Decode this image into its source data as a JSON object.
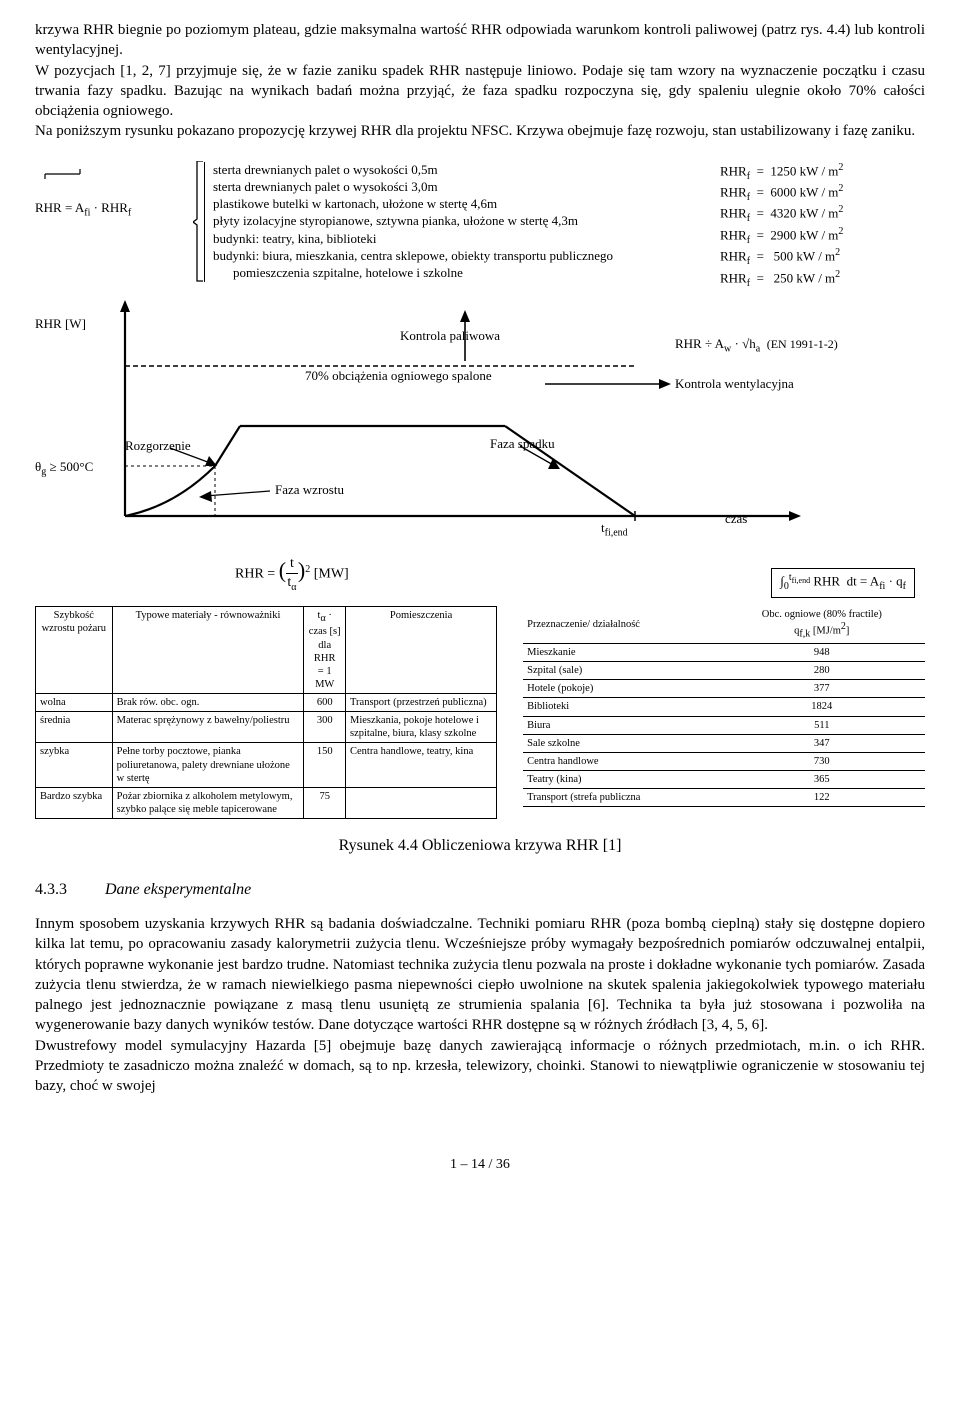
{
  "paragraphs": {
    "p1": "krzywa RHR biegnie po poziomym plateau, gdzie maksymalna wartość RHR odpowiada warunkom kontroli paliwowej (patrz rys. 4.4) lub kontroli wentylacyjnej.",
    "p2": "W pozycjach [1, 2, 7] przyjmuje się, że w fazie zaniku spadek RHR następuje liniowo. Podaje się tam wzory na wyznaczenie początku i czasu trwania fazy spadku. Bazując na wynikach badań można przyjąć, że faza spadku rozpoczyna się, gdy spaleniu ulegnie około 70% całości obciążenia ogniowego.",
    "p3": "Na poniższym rysunku pokazano propozycję krzywej RHR dla projektu NFSC. Krzywa obejmuje fazę rozwoju, stan ustabilizowany i fazę zaniku.",
    "p4": "Innym sposobem uzyskania krzywych RHR są badania doświadczalne. Techniki pomiaru RHR (poza bombą cieplną) stały się dostępne dopiero kilka lat temu, po opracowaniu zasady kalorymetrii zużycia tlenu. Wcześniejsze próby wymagały bezpośrednich pomiarów odczuwalnej entalpii, których poprawne wykonanie jest bardzo trudne. Natomiast technika zużycia tlenu pozwala na proste i dokładne wykonanie tych pomiarów. Zasada zużycia tlenu stwierdza, że w ramach niewielkiego pasma niepewności ciepło uwolnione na skutek spalenia jakiegokolwiek typowego materiału palnego jest jednoznacznie powiązane z masą tlenu usuniętą ze strumienia spalania [6]. Technika ta była już stosowana i pozwoliła na wygenerowanie bazy danych wyników testów. Dane dotyczące wartości RHR dostępne są w różnych źródłach [3, 4, 5, 6].",
    "p5": "Dwustrefowy model symulacyjny Hazarda [5] obejmuje bazę danych zawierającą informacje o różnych przedmiotach, m.in. o ich RHR. Przedmioty te zasadniczo można znaleźć w domach, są to np. krzesła, telewizory, choinki. Stanowi to niewątpliwie ograniczenie w stosowaniu tej bazy, choć w swojej"
  },
  "figure": {
    "formula_left": "RHR = A_fi · RHR_f",
    "y_axis_label": "RHR [W]",
    "theta_label": "θ_g ≥ 500°C",
    "materials": [
      "sterta drewnianych palet o wysokości 0,5m",
      "sterta drewnianych palet o wysokości 3,0m",
      "plastikowe butelki w kartonach, ułożone w stertę 4,6m",
      "płyty izolacyjne styropianowe, sztywna pianka, ułożone w stertę 4,3m",
      "budynki: teatry, kina, biblioteki",
      "budynki: biura, mieszkania, centra sklepowe, obiekty transportu publicznego",
      "    pomieszczenia szpitalne, hotelowe i szkolne"
    ],
    "rhr_values": [
      "RHR_f  =  1250 kW / m²",
      "RHR_f  =  6000 kW / m²",
      "RHR_f  =  4320 kW / m²",
      "RHR_f  =  2900 kW / m²",
      "RHR_f  =   500 kW / m²",
      "RHR_f  =   250 kW / m²"
    ],
    "vent_formula": "RHR · A_w · √h_a",
    "en_ref": "(EN 1991-1-2)",
    "labels": {
      "kontrola_paliwowa": "Kontrola paliwowa",
      "seventy": "70% obciążenia ogniowego spalone",
      "kontrola_went": "Kontrola wentylacyjna",
      "rozgorzenie": "Rozgorzenie",
      "faza_wzrostu": "Faza wzrostu",
      "faza_spadku": "Faza spadku",
      "t_fi_end": "t_fi,end",
      "czas": "czas"
    },
    "bottom_formula": "RHR = (t / t_α)² [MW]",
    "integral": "∫₀^t_fi,end RHR  dt = A_fi · q_f",
    "caption": "Rysunek 4.4 Obliczeniowa krzywa RHR [1]",
    "chart_style": {
      "stroke": "#000000",
      "line_width_main": 2.2,
      "line_width_dash": 1.4,
      "dash_pattern": "5 3",
      "arrow_fill": "#000000",
      "background": "#ffffff"
    }
  },
  "table_left": {
    "headers": [
      "Szybkość wzrostu pożaru",
      "Typowe materiały - równoważniki",
      "t_α · czas [s] dla RHR = 1 MW",
      "Pomieszczenia"
    ],
    "rows": [
      [
        "wolna",
        "Brak rów. obc. ogn.",
        "600",
        "Transport (przestrzeń publiczna)"
      ],
      [
        "średnia",
        "Materac sprężynowy z bawełny/poliestru",
        "300",
        "Mieszkania, pokoje hotelowe i szpitalne, biura, klasy szkolne"
      ],
      [
        "szybka",
        "Pełne torby pocztowe, pianka poliuretanowa, palety drewniane ułożone w stertę",
        "150",
        "Centra handlowe, teatry, kina"
      ],
      [
        "Bardzo szybka",
        "Pożar zbiornika z alkoholem metylowym, szybko palące się meble tapicerowane",
        "75",
        ""
      ]
    ]
  },
  "table_right": {
    "headers": [
      "Przeznaczenie/ działalność",
      "Obc. ogniowe (80% fractile) q_f,k [MJ/m²]"
    ],
    "rows": [
      [
        "Mieszkanie",
        "948"
      ],
      [
        "Szpital (sale)",
        "280"
      ],
      [
        "Hotele (pokoje)",
        "377"
      ],
      [
        "Biblioteki",
        "1824"
      ],
      [
        "Biura",
        "511"
      ],
      [
        "Sale szkolne",
        "347"
      ],
      [
        "Centra handlowe",
        "730"
      ],
      [
        "Teatry (kina)",
        "365"
      ],
      [
        "Transport (strefa publiczna",
        "122"
      ]
    ]
  },
  "section": {
    "num": "4.3.3",
    "title": "Dane eksperymentalne"
  },
  "page": "1 – 14 / 36"
}
